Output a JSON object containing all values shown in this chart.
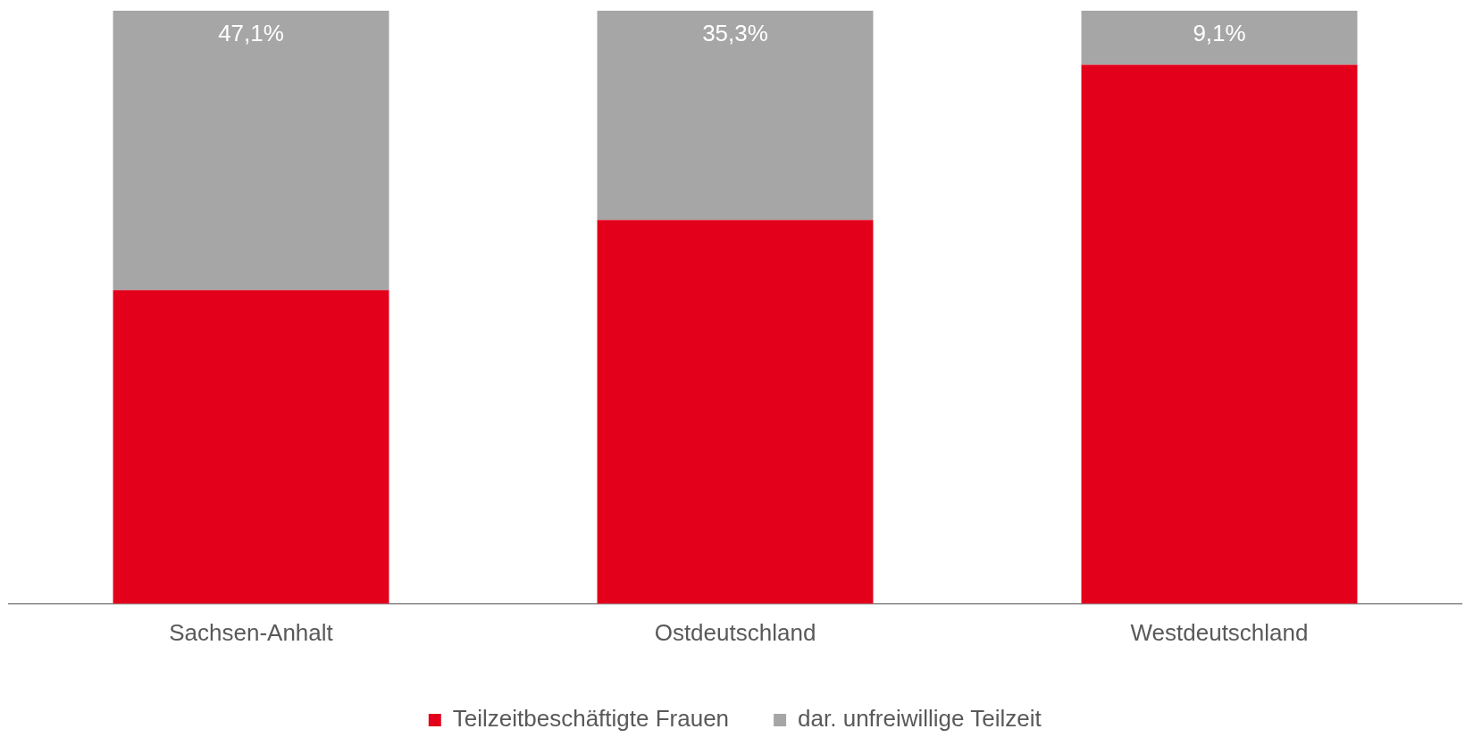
{
  "chart_data": {
    "type": "bar",
    "stacked": true,
    "categories": [
      "Sachsen-Anhalt",
      "Ostdeutschland",
      "Westdeutschland"
    ],
    "series": [
      {
        "name": "Teilzeitbeschäftigte Frauen",
        "color": "#e2001a",
        "values": [
          52.9,
          64.7,
          90.9
        ]
      },
      {
        "name": "dar. unfreiwillige Teilzeit",
        "color": "#a6a6a6",
        "values": [
          47.1,
          35.3,
          9.1
        ],
        "value_labels": [
          "47,1%",
          "35,3%",
          "9,1%"
        ]
      }
    ],
    "ylim": [
      0,
      100
    ],
    "grid": false,
    "legend": "bottom"
  }
}
